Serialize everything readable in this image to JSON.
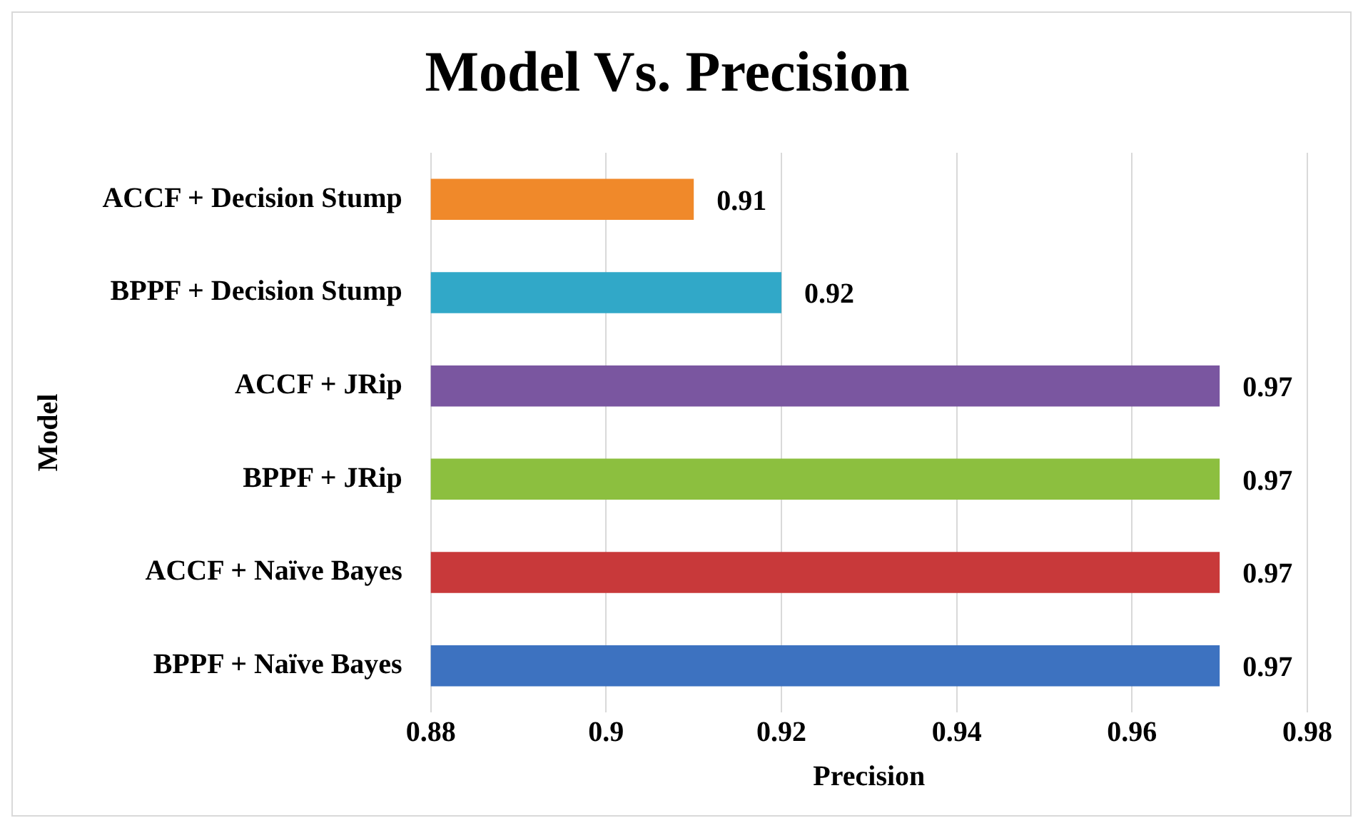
{
  "chart_data": {
    "type": "bar",
    "orientation": "horizontal",
    "title": "Model Vs. Precision",
    "xlabel": "Precision",
    "ylabel": "Model",
    "categories": [
      "ACCF + Decision Stump",
      "BPPF + Decision Stump",
      "ACCF + JRip",
      "BPPF + JRip",
      "ACCF + Naïve Bayes",
      "BPPF + Naïve Bayes"
    ],
    "values": [
      0.91,
      0.92,
      0.97,
      0.97,
      0.97,
      0.97
    ],
    "colors": [
      "#f0892a",
      "#31a8c8",
      "#7a56a0",
      "#8cbf3f",
      "#c8393a",
      "#3d72c0"
    ],
    "xlim": [
      0.88,
      0.98
    ],
    "xticks": [
      0.88,
      0.9,
      0.92,
      0.94,
      0.96,
      0.98
    ],
    "grid": "x",
    "legend": false,
    "data_labels": true
  }
}
